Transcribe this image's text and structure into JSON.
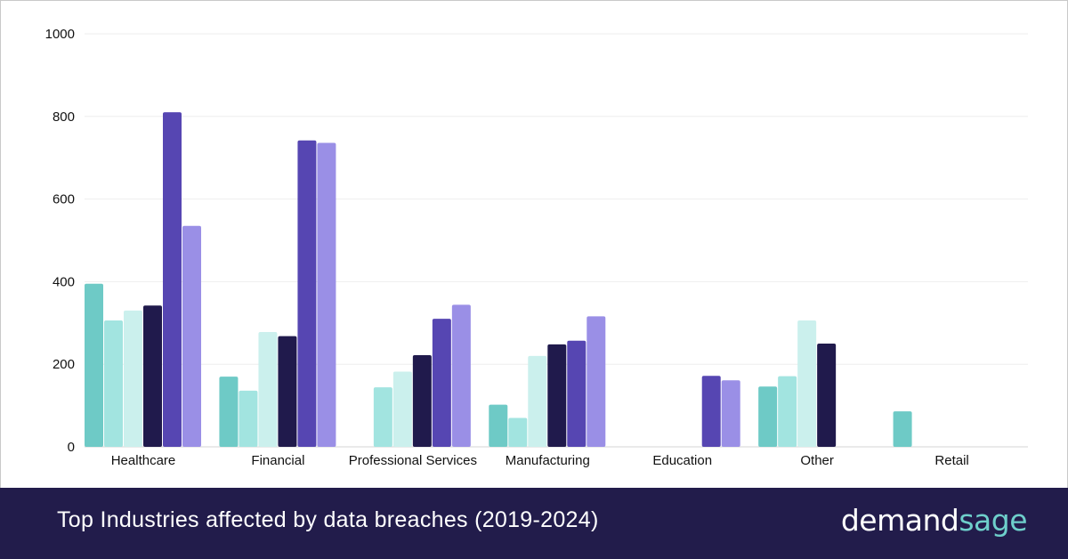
{
  "chart_data": {
    "type": "bar",
    "categories": [
      "Healthcare",
      "Financial",
      "Professional Services",
      "Manufacturing",
      "Education",
      "Other",
      "Retail"
    ],
    "series": [
      {
        "values": [
          395,
          170,
          null,
          102,
          null,
          146,
          86
        ],
        "color": "#6ecac6"
      },
      {
        "values": [
          306,
          136,
          144,
          70,
          null,
          171,
          null
        ],
        "color": "#a2e4e0"
      },
      {
        "values": [
          330,
          278,
          182,
          220,
          null,
          306,
          null
        ],
        "color": "#cbf0ed"
      },
      {
        "values": [
          342,
          268,
          222,
          248,
          null,
          250,
          null
        ],
        "color": "#201a4c"
      },
      {
        "values": [
          810,
          742,
          310,
          257,
          172,
          null,
          null
        ],
        "color": "#5646b2"
      },
      {
        "values": [
          535,
          736,
          344,
          316,
          161,
          null,
          null
        ],
        "color": "#9a8fe6"
      }
    ],
    "ylim": [
      0,
      1000
    ],
    "yticks": [
      0,
      200,
      400,
      600,
      800,
      1000
    ],
    "grid": true,
    "legend": "none"
  },
  "footer": {
    "title": "Top Industries affected by data breaches (2019-2024)",
    "brand_part1": "demand",
    "brand_part2": "sage"
  },
  "colors": {
    "footer_bg": "#221c4b",
    "brand_accent": "#6ecfcb"
  }
}
